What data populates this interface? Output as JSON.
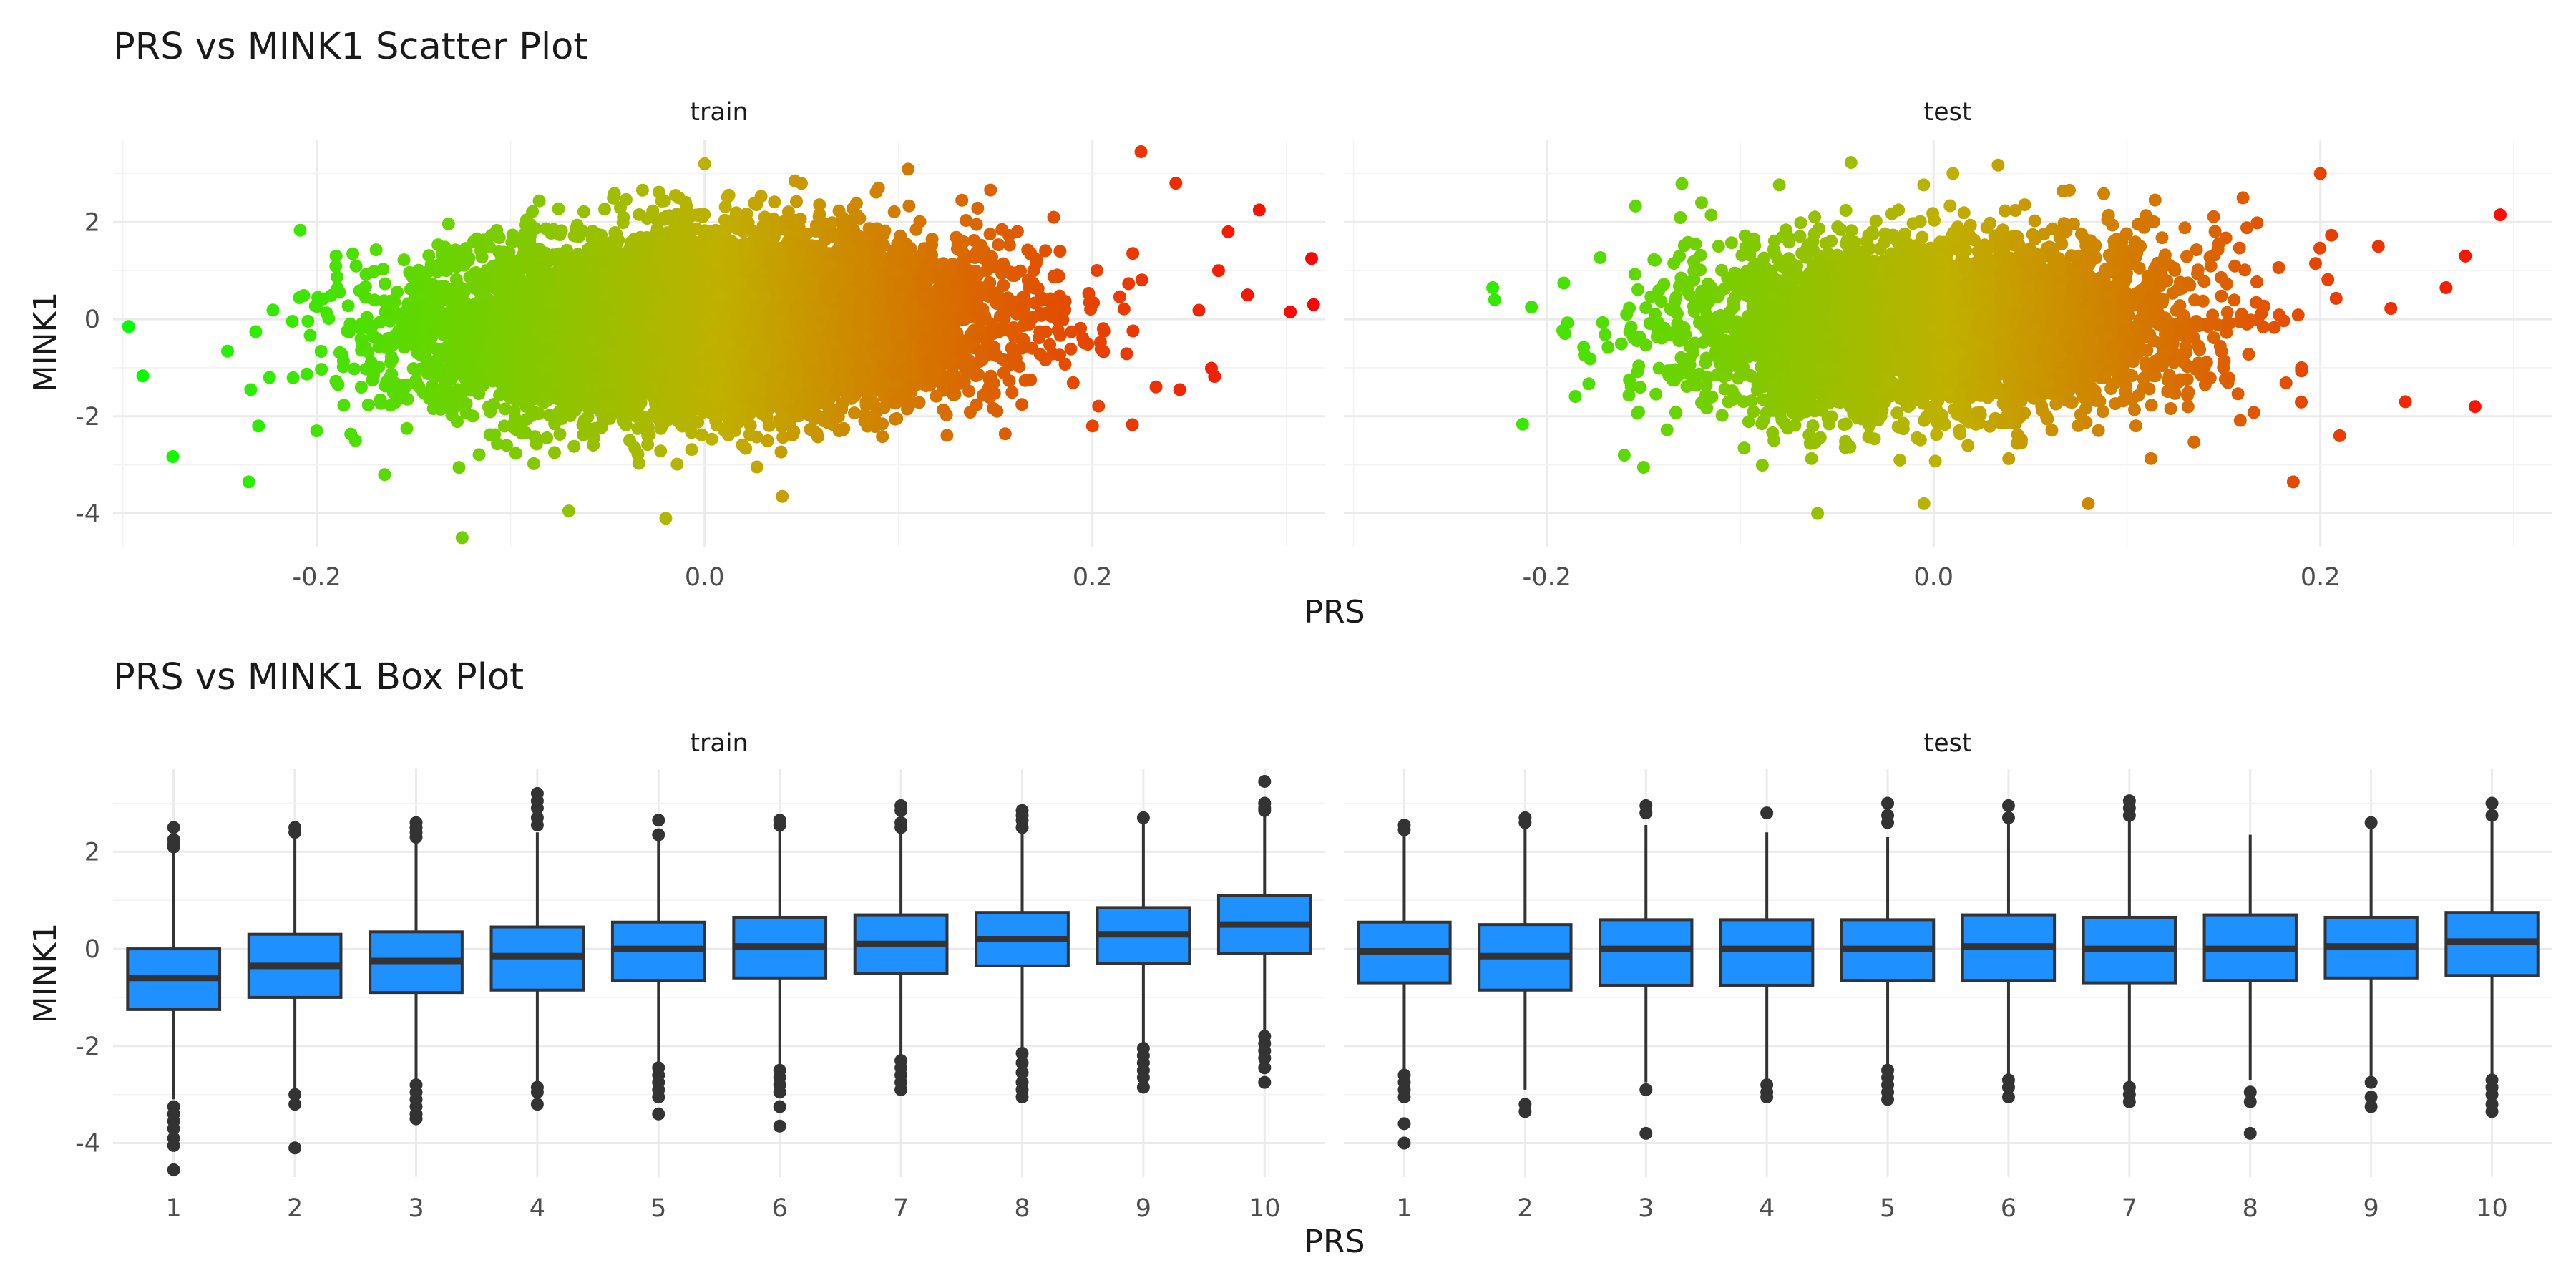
{
  "chart_data": [
    {
      "type": "scatter",
      "title": "PRS vs MINK1 Scatter Plot",
      "xlabel": "PRS",
      "ylabel": "MINK1",
      "facets": [
        "train",
        "test"
      ],
      "xlim": [
        -0.305,
        0.32
      ],
      "ylim": [
        -4.7,
        3.7
      ],
      "x_ticks": [
        -0.2,
        0.0,
        0.2
      ],
      "x_tick_labels": [
        "-0.2",
        "0.0",
        "0.2"
      ],
      "y_ticks": [
        -4,
        -2,
        0,
        2
      ],
      "y_tick_labels": [
        "-4",
        "-2",
        "0",
        "2"
      ],
      "grid": true,
      "color_scale": {
        "low": "#00ff00",
        "mid": "#c0b000",
        "high": "#ff0000",
        "mapped_to": "PRS"
      },
      "panels": [
        {
          "facet": "train",
          "cloud": {
            "x_mean": 0.0,
            "x_sd": 0.07,
            "y_mean": -0.1,
            "y_sd": 0.95,
            "slope": 3.2,
            "approx_n": 9000
          },
          "points": [
            {
              "x": -0.297,
              "y": -0.15
            },
            {
              "x": 0.313,
              "y": 1.25
            },
            {
              "x": 0.314,
              "y": 0.3
            },
            {
              "x": 0.302,
              "y": 0.15
            },
            {
              "x": 0.286,
              "y": 2.25
            },
            {
              "x": 0.225,
              "y": 3.45
            },
            {
              "x": 0.243,
              "y": 2.8
            },
            {
              "x": -0.125,
              "y": -4.5
            },
            {
              "x": -0.235,
              "y": -3.35
            },
            {
              "x": -0.234,
              "y": -1.45
            },
            {
              "x": -0.23,
              "y": -2.2
            },
            {
              "x": -0.2,
              "y": -2.3
            },
            {
              "x": 0.0,
              "y": 3.2
            },
            {
              "x": -0.02,
              "y": -4.1
            },
            {
              "x": -0.07,
              "y": -3.95
            },
            {
              "x": 0.245,
              "y": -1.45
            },
            {
              "x": 0.18,
              "y": 2.1
            },
            {
              "x": 0.265,
              "y": 1.0
            },
            {
              "x": 0.28,
              "y": 0.5
            },
            {
              "x": -0.165,
              "y": -3.2
            },
            {
              "x": -0.19,
              "y": 1.3
            },
            {
              "x": 0.04,
              "y": -3.65
            },
            {
              "x": -0.18,
              "y": -2.5
            },
            {
              "x": 0.2,
              "y": -2.2
            },
            {
              "x": 0.27,
              "y": 1.8
            }
          ]
        },
        {
          "facet": "test",
          "cloud": {
            "x_mean": 0.0,
            "x_sd": 0.063,
            "y_mean": -0.15,
            "y_sd": 0.95,
            "slope": 2.5,
            "approx_n": 4500
          },
          "points": [
            {
              "x": -0.228,
              "y": 0.65
            },
            {
              "x": -0.227,
              "y": 0.4
            },
            {
              "x": -0.208,
              "y": 0.25
            },
            {
              "x": 0.293,
              "y": 2.15
            },
            {
              "x": 0.28,
              "y": -1.8
            },
            {
              "x": 0.244,
              "y": -1.7
            },
            {
              "x": 0.2,
              "y": 3.0
            },
            {
              "x": 0.265,
              "y": 0.65
            },
            {
              "x": 0.275,
              "y": 1.3
            },
            {
              "x": -0.06,
              "y": -4.0
            },
            {
              "x": -0.005,
              "y": -3.8
            },
            {
              "x": 0.08,
              "y": -3.8
            },
            {
              "x": -0.16,
              "y": -2.8
            },
            {
              "x": -0.15,
              "y": -3.05
            },
            {
              "x": 0.186,
              "y": -3.35
            },
            {
              "x": 0.21,
              "y": -2.4
            },
            {
              "x": 0.23,
              "y": 1.5
            },
            {
              "x": 0.16,
              "y": 2.5
            },
            {
              "x": 0.01,
              "y": 3.0
            },
            {
              "x": -0.12,
              "y": 2.4
            }
          ]
        }
      ]
    },
    {
      "type": "box",
      "title": "PRS vs MINK1 Box Plot",
      "xlabel": "PRS",
      "ylabel": "MINK1",
      "facets": [
        "train",
        "test"
      ],
      "categories": [
        "1",
        "2",
        "3",
        "4",
        "5",
        "6",
        "7",
        "8",
        "9",
        "10"
      ],
      "ylim": [
        -4.7,
        3.7
      ],
      "y_ticks": [
        -4,
        -2,
        0,
        2
      ],
      "y_tick_labels": [
        "-4",
        "-2",
        "0",
        "2"
      ],
      "box_fill": "#1e90ff",
      "box_stroke": "#333333",
      "grid": true,
      "panels": [
        {
          "facet": "train",
          "boxes": [
            {
              "category": "1",
              "q1": -1.25,
              "median": -0.6,
              "q3": 0.0,
              "lower": -3.1,
              "upper": 2.0,
              "outliers": [
                2.5,
                2.25,
                2.15,
                2.1,
                -3.25,
                -3.4,
                -3.55,
                -3.7,
                -3.9,
                -4.05,
                -4.55
              ]
            },
            {
              "category": "2",
              "q1": -1.0,
              "median": -0.35,
              "q3": 0.3,
              "lower": -2.9,
              "upper": 2.3,
              "outliers": [
                2.5,
                2.4,
                -3.0,
                -3.2,
                -4.1
              ]
            },
            {
              "category": "3",
              "q1": -0.9,
              "median": -0.25,
              "q3": 0.35,
              "lower": -2.7,
              "upper": 2.3,
              "outliers": [
                2.6,
                2.5,
                2.4,
                2.3,
                -2.8,
                -2.95,
                -3.1,
                -3.25,
                -3.4,
                -3.5
              ]
            },
            {
              "category": "4",
              "q1": -0.85,
              "median": -0.15,
              "q3": 0.45,
              "lower": -2.75,
              "upper": 2.4,
              "outliers": [
                3.2,
                3.05,
                2.9,
                2.7,
                2.55,
                -2.85,
                -2.95,
                -3.2
              ]
            },
            {
              "category": "5",
              "q1": -0.65,
              "median": 0.0,
              "q3": 0.55,
              "lower": -2.4,
              "upper": 2.35,
              "outliers": [
                2.65,
                2.35,
                -2.45,
                -2.6,
                -2.75,
                -2.9,
                -3.05,
                -3.4
              ]
            },
            {
              "category": "6",
              "q1": -0.6,
              "median": 0.05,
              "q3": 0.65,
              "lower": -2.4,
              "upper": 2.5,
              "outliers": [
                2.65,
                2.55,
                -2.5,
                -2.65,
                -2.8,
                -2.95,
                -3.25,
                -3.65
              ]
            },
            {
              "category": "7",
              "q1": -0.5,
              "median": 0.1,
              "q3": 0.7,
              "lower": -2.25,
              "upper": 2.5,
              "outliers": [
                2.95,
                2.85,
                2.6,
                2.5,
                -2.3,
                -2.45,
                -2.6,
                -2.75,
                -2.9
              ]
            },
            {
              "category": "8",
              "q1": -0.35,
              "median": 0.2,
              "q3": 0.75,
              "lower": -2.1,
              "upper": 2.4,
              "outliers": [
                2.85,
                2.75,
                2.65,
                2.5,
                -2.15,
                -2.35,
                -2.55,
                -2.75,
                -2.9,
                -3.05
              ]
            },
            {
              "category": "9",
              "q1": -0.3,
              "median": 0.3,
              "q3": 0.85,
              "lower": -1.95,
              "upper": 2.7,
              "outliers": [
                2.7,
                -2.05,
                -2.2,
                -2.35,
                -2.5,
                -2.65,
                -2.85
              ]
            },
            {
              "category": "10",
              "q1": -0.1,
              "median": 0.5,
              "q3": 1.1,
              "lower": -1.7,
              "upper": 2.8,
              "outliers": [
                3.45,
                3.0,
                2.9,
                2.85,
                -1.8,
                -1.95,
                -2.1,
                -2.25,
                -2.45,
                -2.75
              ]
            }
          ]
        },
        {
          "facet": "test",
          "boxes": [
            {
              "category": "1",
              "q1": -0.7,
              "median": -0.05,
              "q3": 0.55,
              "lower": -2.5,
              "upper": 2.45,
              "outliers": [
                2.55,
                2.45,
                -2.6,
                -2.75,
                -2.9,
                -3.05,
                -3.6,
                -4.0
              ]
            },
            {
              "category": "2",
              "q1": -0.85,
              "median": -0.15,
              "q3": 0.5,
              "lower": -2.9,
              "upper": 2.55,
              "outliers": [
                2.7,
                2.6,
                -3.2,
                -3.35
              ]
            },
            {
              "category": "3",
              "q1": -0.75,
              "median": 0.0,
              "q3": 0.6,
              "lower": -2.75,
              "upper": 2.55,
              "outliers": [
                2.95,
                2.8,
                -2.9,
                -3.8
              ]
            },
            {
              "category": "4",
              "q1": -0.75,
              "median": 0.0,
              "q3": 0.6,
              "lower": -2.7,
              "upper": 2.4,
              "outliers": [
                2.8,
                -2.8,
                -2.95,
                -3.05
              ]
            },
            {
              "category": "5",
              "q1": -0.65,
              "median": 0.0,
              "q3": 0.6,
              "lower": -2.4,
              "upper": 2.3,
              "outliers": [
                3.0,
                2.75,
                2.6,
                -2.5,
                -2.65,
                -2.8,
                -2.95,
                -3.1
              ]
            },
            {
              "category": "6",
              "q1": -0.65,
              "median": 0.05,
              "q3": 0.7,
              "lower": -2.6,
              "upper": 2.6,
              "outliers": [
                2.95,
                2.7,
                -2.7,
                -2.85,
                -3.05
              ]
            },
            {
              "category": "7",
              "q1": -0.7,
              "median": 0.0,
              "q3": 0.65,
              "lower": -2.75,
              "upper": 2.65,
              "outliers": [
                3.05,
                2.9,
                2.75,
                -2.85,
                -3.0,
                -3.15
              ]
            },
            {
              "category": "8",
              "q1": -0.65,
              "median": 0.0,
              "q3": 0.7,
              "lower": -2.7,
              "upper": 2.35,
              "outliers": [
                -2.95,
                -3.15,
                -3.8
              ]
            },
            {
              "category": "9",
              "q1": -0.6,
              "median": 0.05,
              "q3": 0.65,
              "lower": -2.7,
              "upper": 2.5,
              "outliers": [
                2.6,
                -2.75,
                -3.05,
                -3.25
              ]
            },
            {
              "category": "10",
              "q1": -0.55,
              "median": 0.15,
              "q3": 0.75,
              "lower": -2.6,
              "upper": 2.7,
              "outliers": [
                3.0,
                2.75,
                -2.7,
                -2.85,
                -3.0,
                -3.2,
                -3.35
              ]
            }
          ]
        }
      ]
    }
  ]
}
